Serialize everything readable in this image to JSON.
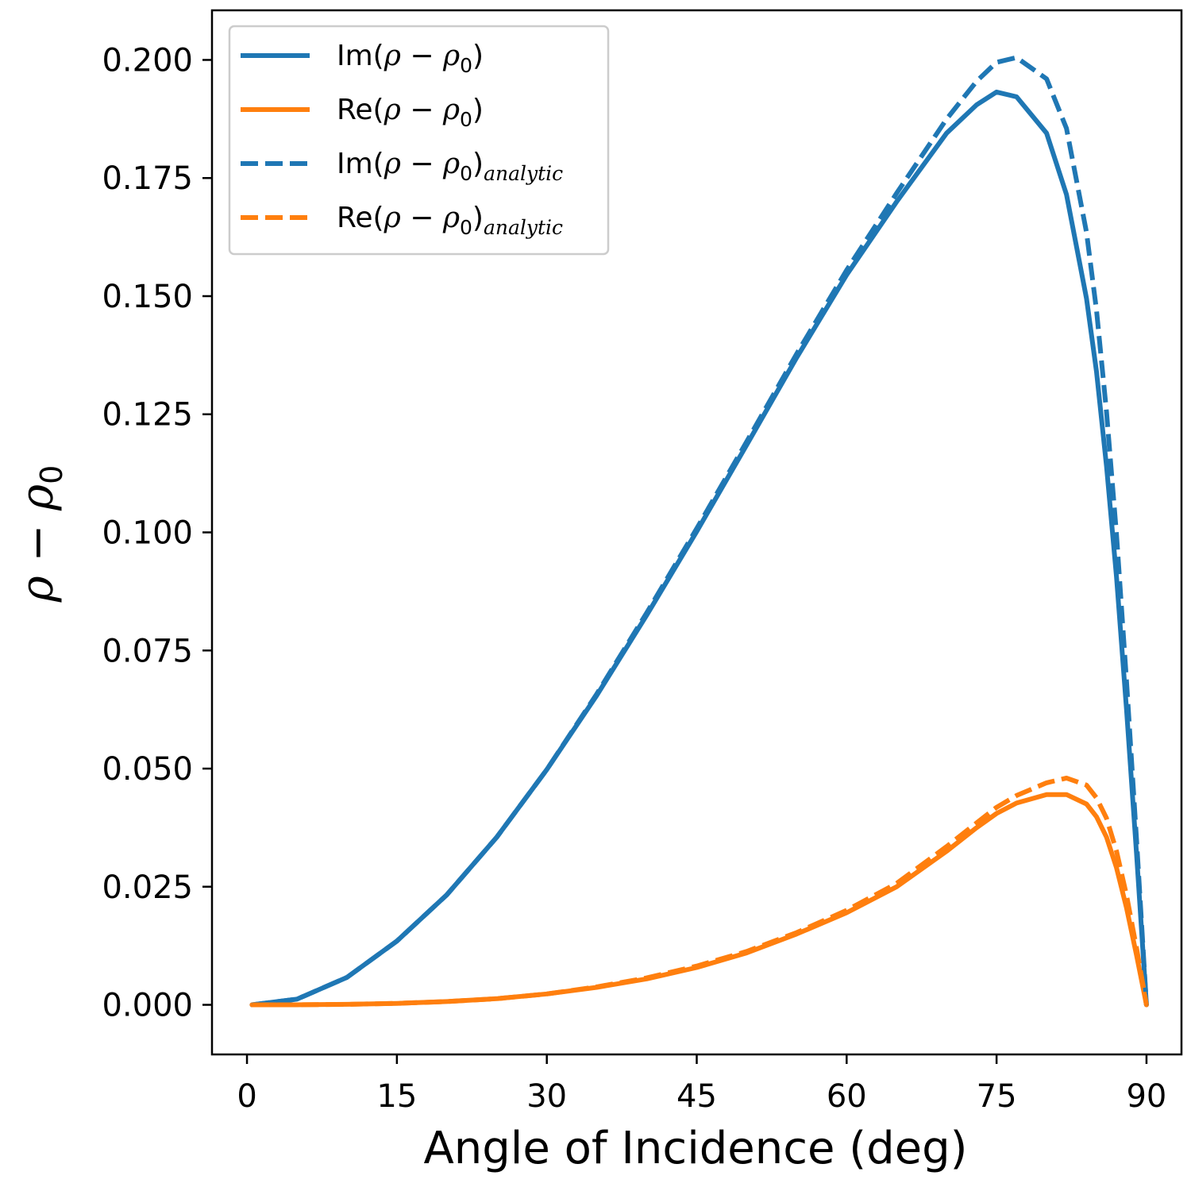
{
  "chart_data": {
    "type": "line",
    "xlabel": "Angle of Incidence (deg)",
    "ylabel": "ρ − ρ0",
    "xlim": [
      -3.5,
      93.5
    ],
    "ylim": [
      -0.0105,
      0.2105
    ],
    "x_ticks": [
      0,
      15,
      30,
      45,
      60,
      75,
      90
    ],
    "x_tick_labels": [
      "0",
      "15",
      "30",
      "45",
      "60",
      "75",
      "90"
    ],
    "y_ticks": [
      0.0,
      0.025,
      0.05,
      0.075,
      0.1,
      0.125,
      0.15,
      0.175,
      0.2
    ],
    "y_tick_labels": [
      "0.000",
      "0.025",
      "0.050",
      "0.075",
      "0.100",
      "0.125",
      "0.150",
      "0.175",
      "0.200"
    ],
    "grid": false,
    "legend_position": "top-left",
    "colors": {
      "blue": "#1f77b4",
      "orange": "#ff7f0e"
    },
    "x": [
      0.5,
      5,
      10,
      15,
      20,
      25,
      30,
      35,
      40,
      45,
      50,
      55,
      60,
      65,
      70,
      73,
      75,
      77,
      80,
      82,
      84,
      85,
      86,
      87,
      88,
      89,
      90
    ],
    "series": [
      {
        "name": "Im(ρ − ρ0)",
        "color": "#1f77b4",
        "style": "solid",
        "values": [
          0.0,
          0.0012,
          0.0058,
          0.0135,
          0.0233,
          0.0355,
          0.0498,
          0.0655,
          0.0825,
          0.1002,
          0.1185,
          0.137,
          0.1545,
          0.17,
          0.1845,
          0.1905,
          0.1932,
          0.1922,
          0.1845,
          0.1715,
          0.1495,
          0.134,
          0.114,
          0.0905,
          0.0625,
          0.032,
          0.0
        ]
      },
      {
        "name": "Re(ρ − ρ0)",
        "color": "#ff7f0e",
        "style": "solid",
        "values": [
          0.0,
          0.0,
          0.0001,
          0.0003,
          0.0007,
          0.0013,
          0.0023,
          0.0037,
          0.0055,
          0.0079,
          0.011,
          0.015,
          0.0195,
          0.025,
          0.0325,
          0.0375,
          0.0405,
          0.0427,
          0.0445,
          0.0445,
          0.0425,
          0.0398,
          0.0355,
          0.029,
          0.0205,
          0.0105,
          0.0
        ]
      },
      {
        "name": "Im(ρ − ρ0)analytic",
        "color": "#1f77b4",
        "style": "dashed",
        "values": [
          0.0,
          0.0012,
          0.0058,
          0.0135,
          0.0233,
          0.0355,
          0.0498,
          0.0658,
          0.083,
          0.1008,
          0.1192,
          0.1378,
          0.1555,
          0.1718,
          0.1875,
          0.1955,
          0.1995,
          0.2005,
          0.196,
          0.1855,
          0.1635,
          0.147,
          0.1255,
          0.0995,
          0.0685,
          0.035,
          0.0
        ]
      },
      {
        "name": "Re(ρ − ρ0)analytic",
        "color": "#ff7f0e",
        "style": "dashed",
        "values": [
          0.0,
          0.0,
          0.0001,
          0.0003,
          0.0007,
          0.0013,
          0.0023,
          0.0038,
          0.0057,
          0.0082,
          0.0113,
          0.0153,
          0.02,
          0.0257,
          0.0335,
          0.0385,
          0.0418,
          0.0443,
          0.047,
          0.048,
          0.0465,
          0.0438,
          0.0395,
          0.0325,
          0.0232,
          0.012,
          0.0
        ]
      }
    ],
    "legend": [
      {
        "base": "Im(",
        "rho": "ρ",
        "minus": " − ",
        "rho0": "ρ",
        "sub0": "0",
        "close": ")",
        "subscript": ""
      },
      {
        "base": "Re(",
        "rho": "ρ",
        "minus": " − ",
        "rho0": "ρ",
        "sub0": "0",
        "close": ")",
        "subscript": ""
      },
      {
        "base": "Im(",
        "rho": "ρ",
        "minus": " − ",
        "rho0": "ρ",
        "sub0": "0",
        "close": ")",
        "subscript": "analytic"
      },
      {
        "base": "Re(",
        "rho": "ρ",
        "minus": " − ",
        "rho0": "ρ",
        "sub0": "0",
        "close": ")",
        "subscript": "analytic"
      }
    ],
    "ylabel_parts": {
      "rho": "ρ",
      "minus": " − ",
      "rho0": "ρ",
      "sub0": "0"
    }
  }
}
